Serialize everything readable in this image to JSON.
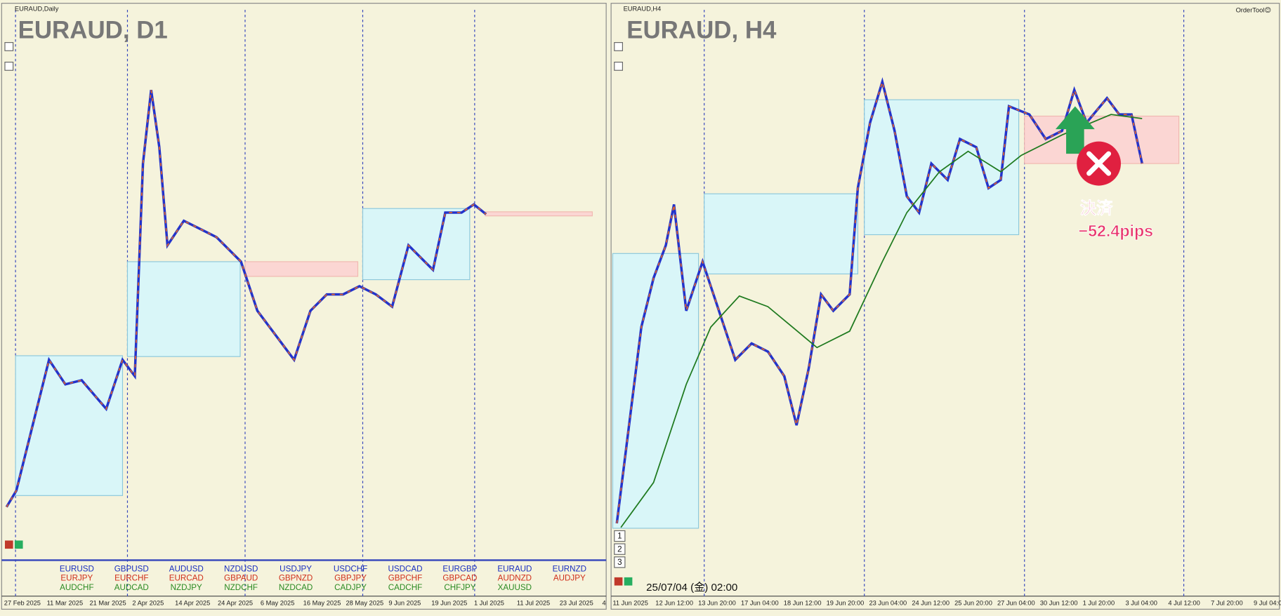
{
  "left_panel": {
    "window_title": "EURAUD,Daily",
    "chart_label": "EURAUD, D1",
    "x_labels": [
      "27 Feb 2025",
      "11 Mar 2025",
      "21 Mar 2025",
      "2 Apr 2025",
      "14 Apr 2025",
      "24 Apr 2025",
      "6 May 2025",
      "16 May 2025",
      "28 May 2025",
      "9 Jun 2025",
      "19 Jun 2025",
      "1 Jul 2025",
      "11 Jul 2025",
      "23 Jul 2025",
      "4"
    ],
    "symbols": [
      [
        "EURUSD",
        "GBPUSD",
        "AUDUSD",
        "NZDUSD",
        "USDJPY",
        "USDCHF",
        "USDCAD",
        "EURGBP",
        "EURAUD",
        "EURNZD"
      ],
      [
        "EURJPY",
        "EURCHF",
        "EURCAD",
        "GBPAUD",
        "GBPNZD",
        "GBPJPY",
        "GBPCHF",
        "GBPCAD",
        "AUDNZD",
        "AUDJPY"
      ],
      [
        "AUDCHF",
        "AUDCAD",
        "NZDJPY",
        "NZDCHF",
        "NZDCAD",
        "CADJPY",
        "CADCHF",
        "CHFJPY",
        "XAUUSD"
      ]
    ]
  },
  "right_panel": {
    "window_title": "EURAUD,H4",
    "chart_label": "EURAUD, H4",
    "tool_label": "OrderTool😊",
    "x_labels": [
      "11 Jun 2025",
      "12 Jun 12:00",
      "13 Jun 20:00",
      "17 Jun 04:00",
      "18 Jun 12:00",
      "19 Jun 20:00",
      "23 Jun 04:00",
      "24 Jun 12:00",
      "25 Jun 20:00",
      "27 Jun 04:00",
      "30 Jun 12:00",
      "1 Jul 20:00",
      "3 Jul 04:00",
      "4 Jul 12:00",
      "7 Jul 20:00",
      "9 Jul 04:0"
    ],
    "timestamp": "25/07/04 (金) 02:00",
    "annotation": {
      "title": "決済",
      "result": "−52.4pips"
    },
    "buttons": [
      "1",
      "2",
      "3"
    ]
  }
}
